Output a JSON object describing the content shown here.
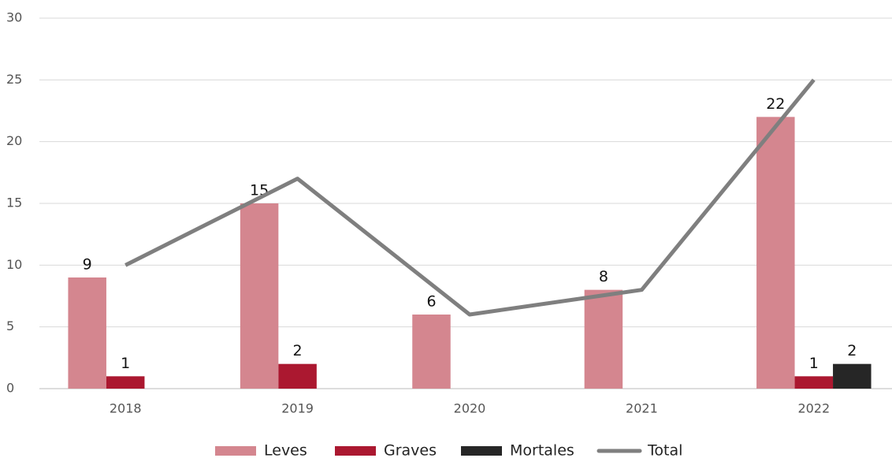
{
  "chart_data": {
    "type": "bar_line",
    "categories": [
      "2018",
      "2019",
      "2020",
      "2021",
      "2022"
    ],
    "series": [
      {
        "name": "Leves",
        "type": "bar",
        "color": "#d4868f",
        "values": [
          9,
          15,
          6,
          8,
          22
        ]
      },
      {
        "name": "Graves",
        "type": "bar",
        "color": "#ab1830",
        "values": [
          1,
          2,
          null,
          null,
          1
        ]
      },
      {
        "name": "Mortales",
        "type": "bar",
        "color": "#262626",
        "values": [
          null,
          null,
          null,
          null,
          2
        ]
      },
      {
        "name": "Total",
        "type": "line",
        "color": "#7f7f7f",
        "values": [
          10,
          17,
          6,
          8,
          25
        ]
      }
    ],
    "ylim": [
      0,
      30
    ],
    "yticks": [
      0,
      5,
      10,
      15,
      20,
      25,
      30
    ],
    "grid": true,
    "legend": "bottom"
  }
}
